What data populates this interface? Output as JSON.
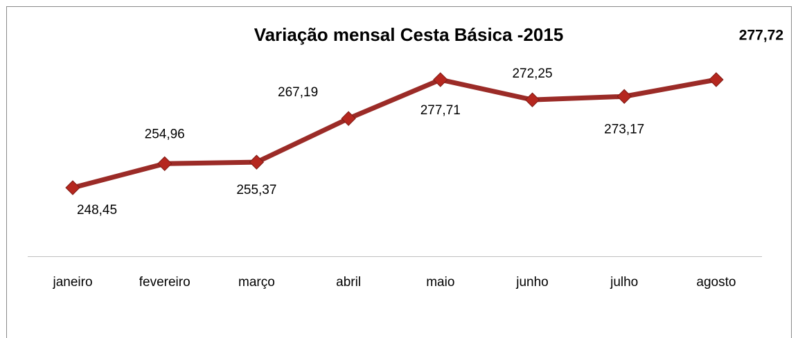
{
  "chart_data": {
    "type": "line",
    "title": "Variação mensal Cesta Básica -2015",
    "categories": [
      "janeiro",
      "fevereiro",
      "março",
      "abril",
      "maio",
      "junho",
      "julho",
      "agosto"
    ],
    "series": [
      {
        "name": null,
        "color": "#9b2b27",
        "values": [
          248.45,
          254.96,
          255.37,
          267.19,
          277.71,
          272.25,
          273.17,
          277.72
        ],
        "value_labels": [
          "248,45",
          "254,96",
          "255,37",
          "267,19",
          "277,71",
          "272,25",
          "273,17",
          "277,72"
        ]
      }
    ]
  }
}
